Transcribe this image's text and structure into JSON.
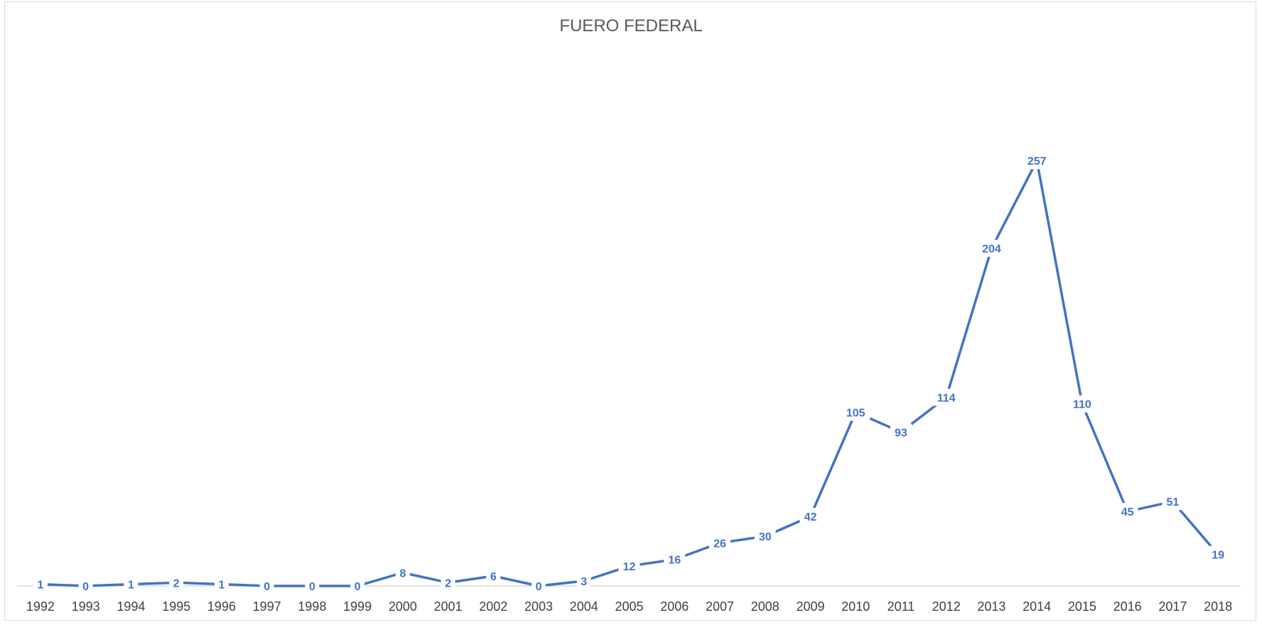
{
  "colors": {
    "series": "#4472c4",
    "axis": "#d9d9d9",
    "title": "#595959",
    "ticks": "#404040",
    "background": "#ffffff"
  },
  "chart_data": {
    "type": "line",
    "title": "FUERO FEDERAL",
    "xlabel": "",
    "ylabel": "",
    "categories": [
      "1992",
      "1993",
      "1994",
      "1995",
      "1996",
      "1997",
      "1998",
      "1999",
      "2000",
      "2001",
      "2002",
      "2003",
      "2004",
      "2005",
      "2006",
      "2007",
      "2008",
      "2009",
      "2010",
      "2011",
      "2012",
      "2013",
      "2014",
      "2015",
      "2016",
      "2017",
      "2018"
    ],
    "series": [
      {
        "values": [
          1,
          0,
          1,
          2,
          1,
          0,
          0,
          0,
          8,
          2,
          6,
          0,
          3,
          12,
          16,
          26,
          30,
          42,
          105,
          93,
          114,
          204,
          257,
          110,
          45,
          51,
          19
        ]
      }
    ],
    "ylim": [
      0,
      300
    ],
    "grid": false,
    "legend": "none",
    "data_labels": true
  }
}
